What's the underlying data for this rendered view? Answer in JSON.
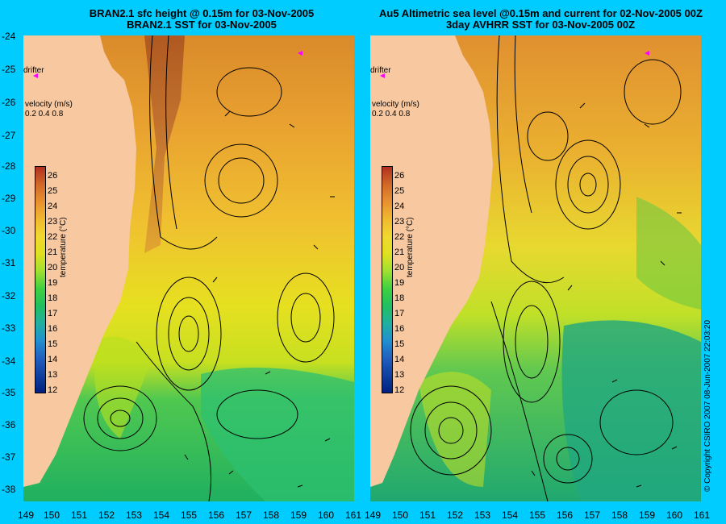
{
  "left_panel": {
    "title_line1": "BRAN2.1 sfc height @ 0.15m for 03-Nov-2005",
    "title_line2": "BRAN2.1 SST for 03-Nov-2005",
    "drifter_label": "drifter",
    "velocity_title": "velocity (m/s)",
    "velocity_scale": "0.2 0.4 0.8",
    "colorbar_title": "temperature (°C)"
  },
  "right_panel": {
    "title_line1": "Au5 Altimetric sea level  @0.15m and current for 02-Nov-2005 00Z",
    "title_line2": "3day AVHRR SST for 03-Nov-2005 00Z",
    "drifter_label": "drifter",
    "velocity_title": "velocity (m/s)",
    "velocity_scale": "0.2 0.4 0.8",
    "colorbar_title": "temperature (°C)"
  },
  "y_axis_labels": [
    "-24",
    "-25",
    "-26",
    "-27",
    "-28",
    "-29",
    "-30",
    "-31",
    "-32",
    "-33",
    "-34",
    "-35",
    "-36",
    "-37",
    "-38"
  ],
  "x_axis_labels": [
    "149",
    "150",
    "151",
    "152",
    "153",
    "154",
    "155",
    "156",
    "157",
    "158",
    "159",
    "160",
    "161"
  ],
  "colorbar_ticks": [
    "26",
    "25",
    "24",
    "23",
    "22",
    "21",
    "20",
    "19",
    "18",
    "17",
    "16",
    "15",
    "14",
    "13",
    "12"
  ],
  "copyright": "© Copyright CSIRO 2007  08-Jun-2007 22:03:20",
  "colors": {
    "background": "#00CCFF",
    "land": "#F8C8A0",
    "drifter": "#FF00FF"
  }
}
